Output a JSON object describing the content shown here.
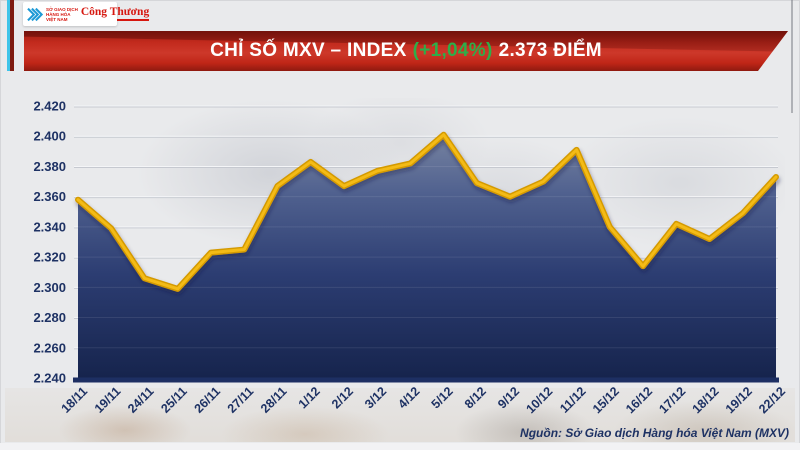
{
  "header": {
    "mxv_logo": {
      "icon": "triple-chevron-right-icon",
      "org_name_lines": [
        "SỞ GIAO DỊCH",
        "HÀNG HÓA",
        "VIỆT NAM"
      ],
      "logo_blue": "#1e9ad6",
      "logo_red": "#d6170f"
    },
    "congthuong": {
      "wordmark": "Công Thương"
    }
  },
  "banner": {
    "title": "CHỈ SỐ MXV – INDEX",
    "change_percent": "(+1,04%)",
    "points_text": "2.373 ĐIỂM",
    "background_red": "#c5271b",
    "change_green": "#2eae49"
  },
  "chart_data": {
    "type": "area",
    "title": "CHỈ SỐ MXV – INDEX (+1,04%) 2.373 ĐIỂM",
    "categories": [
      "18/11",
      "19/11",
      "24/11",
      "25/11",
      "26/11",
      "27/11",
      "28/11",
      "1/12",
      "2/12",
      "3/12",
      "4/12",
      "5/12",
      "8/12",
      "9/12",
      "10/12",
      "11/12",
      "15/12",
      "16/12",
      "17/12",
      "18/12",
      "19/12",
      "22/12"
    ],
    "values": [
      2358,
      2339,
      2306,
      2299,
      2323,
      2325,
      2367,
      2383,
      2367,
      2377,
      2382,
      2401,
      2369,
      2360,
      2370,
      2391,
      2340,
      2314,
      2342,
      2332,
      2349,
      2373
    ],
    "y_ticks": [
      "2.420",
      "2.400",
      "2.380",
      "2.360",
      "2.340",
      "2.320",
      "2.300",
      "2.280",
      "2.260",
      "2.240"
    ],
    "ylim": [
      2240,
      2420
    ],
    "xlabel": "",
    "ylabel": "",
    "grid": true,
    "legend": false,
    "line_color": "#f4bb16",
    "line_edge_color": "#d49a05",
    "fill_gradient": [
      {
        "offset": 0,
        "color": "#99a0b1"
      },
      {
        "offset": 0.08,
        "color": "#7b87a3"
      },
      {
        "offset": 0.32,
        "color": "#50618f"
      },
      {
        "offset": 0.62,
        "color": "#2c3d72"
      },
      {
        "offset": 1,
        "color": "#16244d"
      }
    ],
    "axis_color": "#1d2f63",
    "tick_label_color": "#1e3264"
  },
  "footer": {
    "source": "Nguồn: Sở Giao dịch Hàng hóa Việt Nam (MXV)"
  }
}
